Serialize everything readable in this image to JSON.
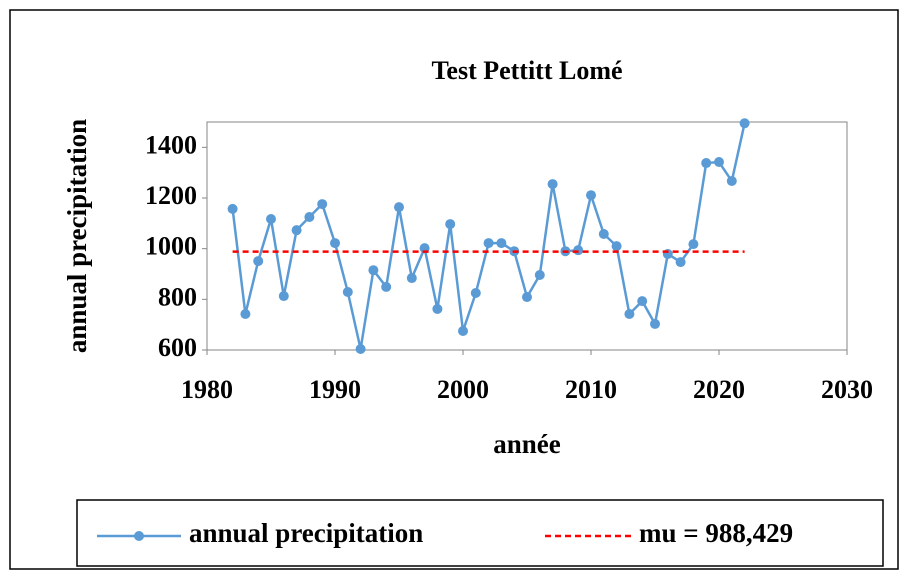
{
  "chart_data": {
    "type": "line",
    "title": "Test Pettitt Lomé",
    "x_label": "année",
    "y_label": "annual precipitation",
    "x": [
      1982,
      1983,
      1984,
      1985,
      1986,
      1987,
      1988,
      1989,
      1990,
      1991,
      1992,
      1993,
      1994,
      1995,
      1996,
      1997,
      1998,
      1999,
      2000,
      2001,
      2002,
      2003,
      2004,
      2005,
      2006,
      2007,
      2008,
      2009,
      2010,
      2011,
      2012,
      2013,
      2014,
      2015,
      2016,
      2017,
      2018,
      2019,
      2020,
      2021,
      2022
    ],
    "series": [
      {
        "name": "annual precipitation",
        "color": "#5b9bd5",
        "values": [
          1157,
          742,
          951,
          1117,
          813,
          1073,
          1125,
          1176,
          1022,
          829,
          604,
          915,
          849,
          1164,
          884,
          1002,
          762,
          1097,
          675,
          825,
          1022,
          1022,
          990,
          809,
          896,
          1255,
          990,
          994,
          1211,
          1058,
          1010,
          742,
          793,
          703,
          979,
          947,
          1018,
          1338,
          1342,
          1267,
          1495
        ]
      },
      {
        "name": "mu = 988,429",
        "color": "#ff0000",
        "x": [
          1982,
          2022
        ],
        "values": [
          988.429,
          988.429
        ]
      }
    ],
    "xlim": [
      1980,
      2030
    ],
    "xticks": [
      1980,
      1990,
      2000,
      2010,
      2020,
      2030
    ],
    "ylim": [
      600,
      1500
    ],
    "yticks": [
      600,
      800,
      1000,
      1200,
      1400
    ],
    "legend": "bottom"
  }
}
